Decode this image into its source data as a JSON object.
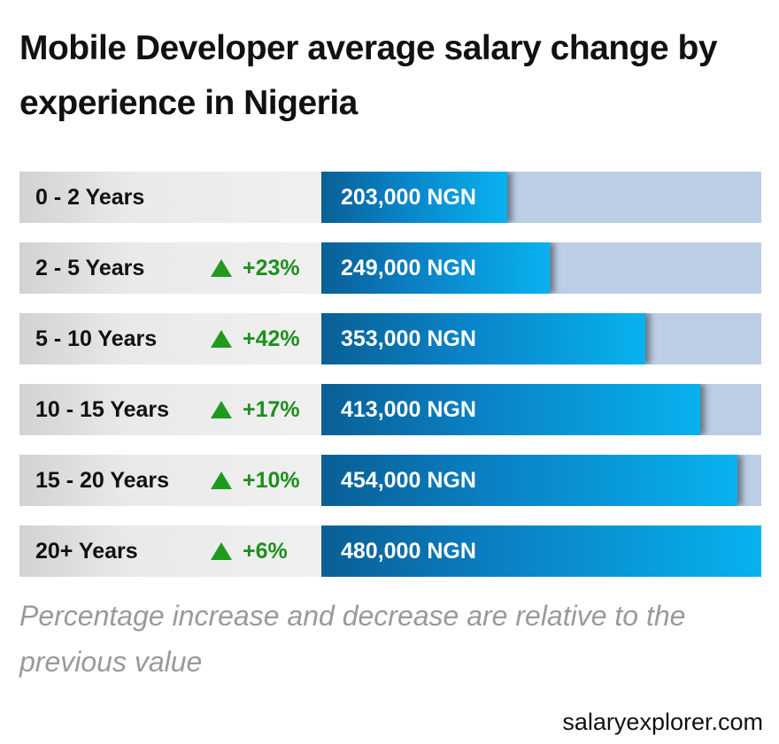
{
  "title": "Mobile Developer average salary change by experience in Nigeria",
  "note": "Percentage increase and decrease are relative to the previous value",
  "source": "salaryexplorer.com",
  "colors": {
    "bar_start": "#0a5f95",
    "bar_end": "#07b2ee",
    "track": "#bccde6",
    "increase": "#1e8e1e"
  },
  "chart_data": {
    "type": "bar",
    "orientation": "horizontal",
    "title": "Mobile Developer average salary change by experience in Nigeria",
    "unit": "NGN",
    "xlim": [
      0,
      480000
    ],
    "categories": [
      "0 - 2 Years",
      "2 - 5 Years",
      "5 - 10 Years",
      "10 - 15 Years",
      "15 - 20 Years",
      "20+ Years"
    ],
    "values": [
      203000,
      249000,
      353000,
      413000,
      454000,
      480000
    ],
    "value_labels": [
      "203,000 NGN",
      "249,000 NGN",
      "353,000 NGN",
      "413,000 NGN",
      "454,000 NGN",
      "480,000 NGN"
    ],
    "changes": [
      "",
      "+23%",
      "+42%",
      "+17%",
      "+10%",
      "+6%"
    ],
    "change_direction": [
      "",
      "up",
      "up",
      "up",
      "up",
      "up"
    ],
    "change_icon": "up-triangle-icon"
  }
}
